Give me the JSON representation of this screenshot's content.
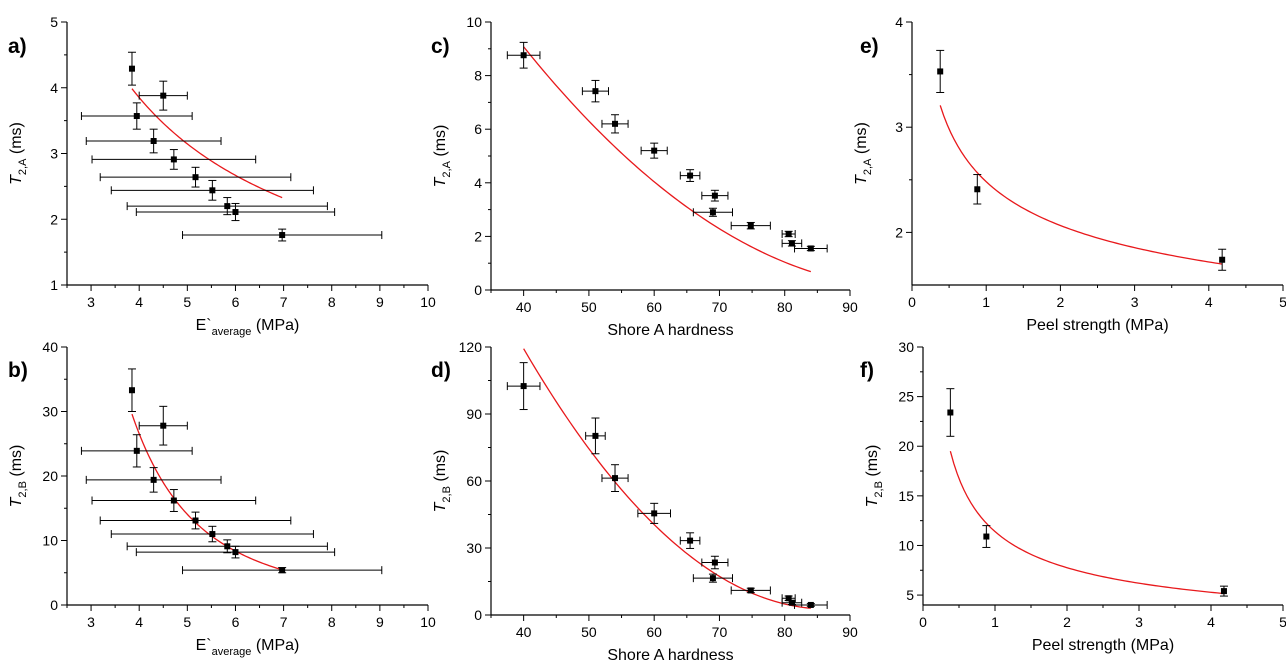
{
  "colors": {
    "fit": "#e8191c",
    "marker": "#000000",
    "axis": "#000000"
  },
  "chart_data": [
    {
      "panel": "a)",
      "type": "scatter",
      "xlabel": "E`",
      "xlabel_sub": "average",
      "xlabel_tail": " (MPa)",
      "ylabel": "T",
      "ylabel_sub": "2,A",
      "ylabel_tail": " (ms)",
      "xlim": [
        2.5,
        10
      ],
      "ylim": [
        1,
        5
      ],
      "xticks": [
        3,
        4,
        5,
        6,
        7,
        8,
        9,
        10
      ],
      "xminor": [
        2.5,
        3.5,
        4.5,
        5.5,
        6.5,
        7.5,
        8.5,
        9.5
      ],
      "yticks": [
        1,
        2,
        3,
        4,
        5
      ],
      "yminor": [
        1.5,
        2.5,
        3.5,
        4.5
      ],
      "points": [
        {
          "x": 3.85,
          "y": 4.29,
          "xerr": 0,
          "yerr": 0.25
        },
        {
          "x": 4.5,
          "y": 3.88,
          "xerr": 0.5,
          "yerr": 0.22
        },
        {
          "x": 3.95,
          "y": 3.57,
          "xerr": 1.15,
          "yerr": 0.2
        },
        {
          "x": 4.3,
          "y": 3.19,
          "xerr": 1.4,
          "yerr": 0.18
        },
        {
          "x": 4.72,
          "y": 2.91,
          "xerr": 1.7,
          "yerr": 0.15
        },
        {
          "x": 5.17,
          "y": 2.64,
          "xerr": 1.98,
          "yerr": 0.15
        },
        {
          "x": 5.52,
          "y": 2.44,
          "xerr": 2.1,
          "yerr": 0.15
        },
        {
          "x": 5.83,
          "y": 2.2,
          "xerr": 2.08,
          "yerr": 0.13
        },
        {
          "x": 6.0,
          "y": 2.11,
          "xerr": 2.06,
          "yerr": 0.13
        },
        {
          "x": 6.97,
          "y": 1.76,
          "xerr": 2.07,
          "yerr": 0.09
        }
      ],
      "fit": {
        "form": "power",
        "a": 13.5,
        "b": -0.905,
        "xmin": 3.85,
        "xmax": 6.97
      }
    },
    {
      "panel": "b)",
      "type": "scatter",
      "xlabel": "E`",
      "xlabel_sub": "average",
      "xlabel_tail": " (MPa)",
      "ylabel": "T",
      "ylabel_sub": "2,B",
      "ylabel_tail": " (ms)",
      "xlim": [
        2.5,
        10
      ],
      "ylim": [
        0,
        40
      ],
      "xticks": [
        3,
        4,
        5,
        6,
        7,
        8,
        9,
        10
      ],
      "xminor": [
        2.5,
        3.5,
        4.5,
        5.5,
        6.5,
        7.5,
        8.5,
        9.5
      ],
      "yticks": [
        0,
        10,
        20,
        30,
        40
      ],
      "yminor": [
        5,
        15,
        25,
        35
      ],
      "points": [
        {
          "x": 3.85,
          "y": 33.3,
          "xerr": 0,
          "yerr": 3.3
        },
        {
          "x": 4.5,
          "y": 27.8,
          "xerr": 0.5,
          "yerr": 3.0
        },
        {
          "x": 3.95,
          "y": 23.9,
          "xerr": 1.15,
          "yerr": 2.5
        },
        {
          "x": 4.3,
          "y": 19.4,
          "xerr": 1.4,
          "yerr": 1.9
        },
        {
          "x": 4.72,
          "y": 16.2,
          "xerr": 1.7,
          "yerr": 1.7
        },
        {
          "x": 5.17,
          "y": 13.1,
          "xerr": 1.98,
          "yerr": 1.3
        },
        {
          "x": 5.52,
          "y": 11.0,
          "xerr": 2.1,
          "yerr": 1.2
        },
        {
          "x": 5.83,
          "y": 9.1,
          "xerr": 2.08,
          "yerr": 1.0
        },
        {
          "x": 6.0,
          "y": 8.2,
          "xerr": 2.06,
          "yerr": 0.9
        },
        {
          "x": 6.97,
          "y": 5.4,
          "xerr": 2.07,
          "yerr": 0.4
        }
      ],
      "fit": {
        "form": "power",
        "a": 1380,
        "b": -2.85,
        "xmin": 3.85,
        "xmax": 6.97
      }
    },
    {
      "panel": "c)",
      "type": "scatter",
      "xlabel": "Shore A hardness",
      "xlabel_sub": "",
      "xlabel_tail": "",
      "ylabel": "T",
      "ylabel_sub": "2,A",
      "ylabel_tail": " (ms)",
      "xlim": [
        35,
        90
      ],
      "ylim": [
        0,
        10
      ],
      "xticks": [
        40,
        50,
        60,
        70,
        80,
        90
      ],
      "xminor": [
        35,
        45,
        55,
        65,
        75,
        85
      ],
      "yticks": [
        0,
        2,
        4,
        6,
        8,
        10
      ],
      "yminor": [
        1,
        3,
        5,
        7,
        9
      ],
      "points": [
        {
          "x": 40,
          "y": 8.76,
          "xerr": 2.5,
          "yerr": 0.48
        },
        {
          "x": 51,
          "y": 7.42,
          "xerr": 2.0,
          "yerr": 0.4
        },
        {
          "x": 54,
          "y": 6.2,
          "xerr": 2.0,
          "yerr": 0.34
        },
        {
          "x": 60,
          "y": 5.2,
          "xerr": 2.0,
          "yerr": 0.28
        },
        {
          "x": 65.5,
          "y": 4.27,
          "xerr": 1.5,
          "yerr": 0.22
        },
        {
          "x": 69.3,
          "y": 3.52,
          "xerr": 2.0,
          "yerr": 0.2
        },
        {
          "x": 69,
          "y": 2.9,
          "xerr": 3.0,
          "yerr": 0.15
        },
        {
          "x": 74.8,
          "y": 2.4,
          "xerr": 3.0,
          "yerr": 0.12
        },
        {
          "x": 80.6,
          "y": 2.09,
          "xerr": 1.0,
          "yerr": 0.1
        },
        {
          "x": 81.1,
          "y": 1.74,
          "xerr": 1.5,
          "yerr": 0.1
        },
        {
          "x": 84.0,
          "y": 1.55,
          "xerr": 2.5,
          "yerr": 0.08
        }
      ],
      "fit": {
        "form": "quadratic",
        "c0": 25.27,
        "c1": -0.5068,
        "c2": 0.002549,
        "xmin": 40,
        "xmax": 84
      }
    },
    {
      "panel": "d)",
      "type": "scatter",
      "xlabel": "Shore A hardness",
      "xlabel_sub": "",
      "xlabel_tail": "",
      "ylabel": "T",
      "ylabel_sub": "2,B",
      "ylabel_tail": " (ms)",
      "xlim": [
        35,
        90
      ],
      "ylim": [
        0,
        120
      ],
      "xticks": [
        40,
        50,
        60,
        70,
        80,
        90
      ],
      "xminor": [
        35,
        45,
        55,
        65,
        75,
        85
      ],
      "yticks": [
        0,
        30,
        60,
        90,
        120
      ],
      "yminor": [
        15,
        45,
        75,
        105
      ],
      "points": [
        {
          "x": 40,
          "y": 102.5,
          "xerr": 2.5,
          "yerr": 10.5
        },
        {
          "x": 51,
          "y": 80.2,
          "xerr": 1.5,
          "yerr": 8.0
        },
        {
          "x": 54,
          "y": 61.3,
          "xerr": 2.0,
          "yerr": 6.0
        },
        {
          "x": 60,
          "y": 45.5,
          "xerr": 2.5,
          "yerr": 4.5
        },
        {
          "x": 65.5,
          "y": 33.3,
          "xerr": 1.5,
          "yerr": 3.5
        },
        {
          "x": 69.3,
          "y": 23.5,
          "xerr": 2.0,
          "yerr": 2.8
        },
        {
          "x": 69,
          "y": 16.5,
          "xerr": 3.0,
          "yerr": 1.8
        },
        {
          "x": 74.8,
          "y": 11.0,
          "xerr": 3.0,
          "yerr": 1.0
        },
        {
          "x": 80.6,
          "y": 7.5,
          "xerr": 1.0,
          "yerr": 1.0
        },
        {
          "x": 81.1,
          "y": 5.5,
          "xerr": 1.5,
          "yerr": 0.8
        },
        {
          "x": 84.0,
          "y": 4.5,
          "xerr": 2.5,
          "yerr": 0.6
        }
      ],
      "fit": {
        "form": "quadratic",
        "c0": 406.4,
        "c1": -9.34,
        "c2": 0.05402,
        "xmin": 40,
        "xmax": 84
      }
    },
    {
      "panel": "e)",
      "type": "scatter",
      "xlabel": "Peel strength (MPa)",
      "xlabel_sub": "",
      "xlabel_tail": "",
      "ylabel": "T",
      "ylabel_sub": "2,A",
      "ylabel_tail": " (ms)",
      "xlim": [
        0,
        5
      ],
      "ylim": [
        1.5,
        4
      ],
      "xticks": [
        0,
        1,
        2,
        3,
        4,
        5
      ],
      "xminor": [
        0.5,
        1.5,
        2.5,
        3.5,
        4.5
      ],
      "yticks": [
        2,
        3,
        4
      ],
      "yminor": [
        2.5,
        3.5
      ],
      "points": [
        {
          "x": 0.38,
          "y": 3.53,
          "xerr": 0,
          "yerr": 0.2
        },
        {
          "x": 0.88,
          "y": 2.41,
          "xerr": 0,
          "yerr": 0.14
        },
        {
          "x": 4.18,
          "y": 1.74,
          "xerr": 0,
          "yerr": 0.1
        }
      ],
      "fit": {
        "form": "power",
        "a": 2.482,
        "b": -0.265,
        "xmin": 0.38,
        "xmax": 4.18
      }
    },
    {
      "panel": "f)",
      "type": "scatter",
      "xlabel": "Peel strength (MPa)",
      "xlabel_sub": "",
      "xlabel_tail": "",
      "ylabel": "T",
      "ylabel_sub": "2,B",
      "ylabel_tail": " (ms)",
      "xlim": [
        0,
        5
      ],
      "ylim": [
        4,
        30
      ],
      "xticks": [
        0,
        1,
        2,
        3,
        4,
        5
      ],
      "xminor": [
        0.5,
        1.5,
        2.5,
        3.5,
        4.5
      ],
      "yticks": [
        5,
        10,
        15,
        20,
        25,
        30
      ],
      "yminor": [
        7.5,
        12.5,
        17.5,
        22.5,
        27.5
      ],
      "points": [
        {
          "x": 0.38,
          "y": 23.4,
          "xerr": 0,
          "yerr": 2.4
        },
        {
          "x": 0.88,
          "y": 10.9,
          "xerr": 0,
          "yerr": 1.1
        },
        {
          "x": 4.18,
          "y": 5.4,
          "xerr": 0,
          "yerr": 0.5
        }
      ],
      "fit": {
        "form": "power",
        "a": 11.4,
        "b": -0.555,
        "xmin": 0.38,
        "xmax": 4.18
      }
    }
  ]
}
